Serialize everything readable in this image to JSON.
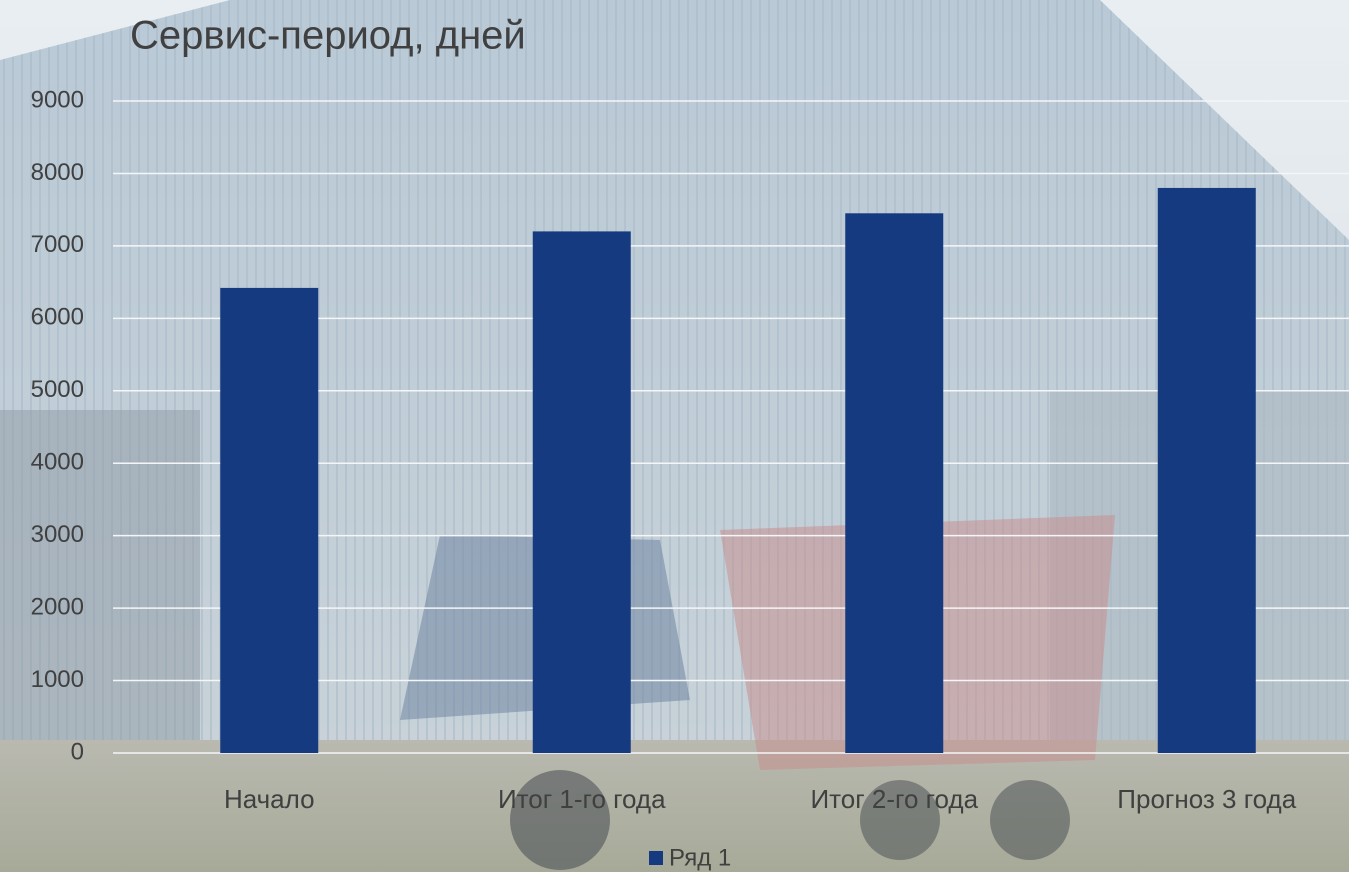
{
  "chart_data": {
    "type": "bar",
    "title": "Сервис-период, дней",
    "categories": [
      "Начало",
      "Итог 1-го года",
      "Итог 2-го года",
      "Прогноз 3 года"
    ],
    "series": [
      {
        "name": "Ряд 1",
        "color": "#163a80",
        "values": [
          6420,
          7200,
          7450,
          7800
        ]
      }
    ],
    "ylim": [
      0,
      9000
    ],
    "yticks": [
      0,
      1000,
      2000,
      3000,
      4000,
      5000,
      6000,
      7000,
      8000,
      9000
    ],
    "grid": true,
    "legend": "bottom"
  }
}
